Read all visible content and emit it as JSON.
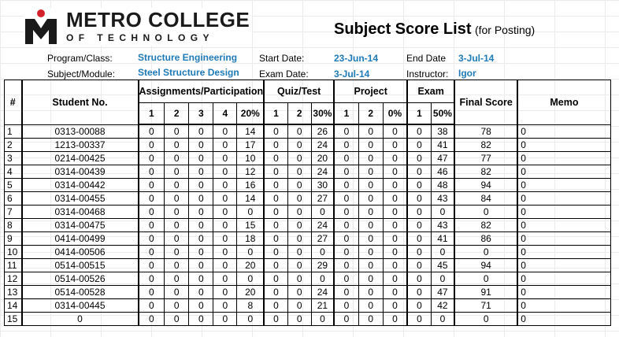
{
  "logo": {
    "name": "METRO COLLEGE",
    "sub": "OF TECHNOLOGY"
  },
  "title": {
    "main": "Subject Score List",
    "sub": "(for Posting)"
  },
  "info": {
    "program_label": "Program/Class:",
    "program_value": "Structure Engineering",
    "start_label": "Start Date:",
    "start_value": "23-Jun-14",
    "end_label": "End Date",
    "end_value": "3-Jul-14",
    "subject_label": "Subject/Module:",
    "subject_value": "Steel Structure Design",
    "exam_label": "Exam Date:",
    "exam_value": "3-Jul-14",
    "instructor_label": "Instructor:",
    "instructor_value": "Igor"
  },
  "headers": {
    "num": "#",
    "student": "Student No.",
    "assign": "Assignments/Participation",
    "quiz": "Quiz/Test",
    "project": "Project",
    "exam": "Exam",
    "final": "Final Score",
    "memo": "Memo",
    "a1": "1",
    "a2": "2",
    "a3": "3",
    "a4": "4",
    "a_pct": "20%",
    "q1": "1",
    "q2": "2",
    "q_pct": "30%",
    "p1": "1",
    "p2": "2",
    "p_pct": "0%",
    "e1": "1",
    "e_pct": "50%"
  },
  "rows": [
    {
      "n": "1",
      "id": "0313-00088",
      "a1": "0",
      "a2": "0",
      "a3": "0",
      "a4": "0",
      "ap": "14",
      "q1": "0",
      "q2": "0",
      "qp": "26",
      "p1": "0",
      "p2": "0",
      "pp": "0",
      "e1": "0",
      "ep": "38",
      "final": "78",
      "memo": "0"
    },
    {
      "n": "2",
      "id": "1213-00337",
      "a1": "0",
      "a2": "0",
      "a3": "0",
      "a4": "0",
      "ap": "17",
      "q1": "0",
      "q2": "0",
      "qp": "24",
      "p1": "0",
      "p2": "0",
      "pp": "0",
      "e1": "0",
      "ep": "41",
      "final": "82",
      "memo": "0"
    },
    {
      "n": "3",
      "id": "0214-00425",
      "a1": "0",
      "a2": "0",
      "a3": "0",
      "a4": "0",
      "ap": "10",
      "q1": "0",
      "q2": "0",
      "qp": "20",
      "p1": "0",
      "p2": "0",
      "pp": "0",
      "e1": "0",
      "ep": "47",
      "final": "77",
      "memo": "0"
    },
    {
      "n": "4",
      "id": "0314-00439",
      "a1": "0",
      "a2": "0",
      "a3": "0",
      "a4": "0",
      "ap": "12",
      "q1": "0",
      "q2": "0",
      "qp": "24",
      "p1": "0",
      "p2": "0",
      "pp": "0",
      "e1": "0",
      "ep": "46",
      "final": "82",
      "memo": "0"
    },
    {
      "n": "5",
      "id": "0314-00442",
      "a1": "0",
      "a2": "0",
      "a3": "0",
      "a4": "0",
      "ap": "16",
      "q1": "0",
      "q2": "0",
      "qp": "30",
      "p1": "0",
      "p2": "0",
      "pp": "0",
      "e1": "0",
      "ep": "48",
      "final": "94",
      "memo": "0"
    },
    {
      "n": "6",
      "id": "0314-00455",
      "a1": "0",
      "a2": "0",
      "a3": "0",
      "a4": "0",
      "ap": "14",
      "q1": "0",
      "q2": "0",
      "qp": "27",
      "p1": "0",
      "p2": "0",
      "pp": "0",
      "e1": "0",
      "ep": "43",
      "final": "84",
      "memo": "0"
    },
    {
      "n": "7",
      "id": "0314-00468",
      "a1": "0",
      "a2": "0",
      "a3": "0",
      "a4": "0",
      "ap": "0",
      "q1": "0",
      "q2": "0",
      "qp": "0",
      "p1": "0",
      "p2": "0",
      "pp": "0",
      "e1": "0",
      "ep": "0",
      "final": "0",
      "memo": "0"
    },
    {
      "n": "8",
      "id": "0314-00475",
      "a1": "0",
      "a2": "0",
      "a3": "0",
      "a4": "0",
      "ap": "15",
      "q1": "0",
      "q2": "0",
      "qp": "24",
      "p1": "0",
      "p2": "0",
      "pp": "0",
      "e1": "0",
      "ep": "43",
      "final": "82",
      "memo": "0"
    },
    {
      "n": "9",
      "id": "0414-00499",
      "a1": "0",
      "a2": "0",
      "a3": "0",
      "a4": "0",
      "ap": "18",
      "q1": "0",
      "q2": "0",
      "qp": "27",
      "p1": "0",
      "p2": "0",
      "pp": "0",
      "e1": "0",
      "ep": "41",
      "final": "86",
      "memo": "0"
    },
    {
      "n": "10",
      "id": "0414-00506",
      "a1": "0",
      "a2": "0",
      "a3": "0",
      "a4": "0",
      "ap": "0",
      "q1": "0",
      "q2": "0",
      "qp": "0",
      "p1": "0",
      "p2": "0",
      "pp": "0",
      "e1": "0",
      "ep": "0",
      "final": "0",
      "memo": "0"
    },
    {
      "n": "11",
      "id": "0514-00515",
      "a1": "0",
      "a2": "0",
      "a3": "0",
      "a4": "0",
      "ap": "20",
      "q1": "0",
      "q2": "0",
      "qp": "29",
      "p1": "0",
      "p2": "0",
      "pp": "0",
      "e1": "0",
      "ep": "45",
      "final": "94",
      "memo": "0"
    },
    {
      "n": "12",
      "id": "0514-00526",
      "a1": "0",
      "a2": "0",
      "a3": "0",
      "a4": "0",
      "ap": "0",
      "q1": "0",
      "q2": "0",
      "qp": "0",
      "p1": "0",
      "p2": "0",
      "pp": "0",
      "e1": "0",
      "ep": "0",
      "final": "0",
      "memo": "0"
    },
    {
      "n": "13",
      "id": "0514-00528",
      "a1": "0",
      "a2": "0",
      "a3": "0",
      "a4": "0",
      "ap": "20",
      "q1": "0",
      "q2": "0",
      "qp": "24",
      "p1": "0",
      "p2": "0",
      "pp": "0",
      "e1": "0",
      "ep": "47",
      "final": "91",
      "memo": "0"
    },
    {
      "n": "14",
      "id": "0314-00445",
      "a1": "0",
      "a2": "0",
      "a3": "0",
      "a4": "0",
      "ap": "8",
      "q1": "0",
      "q2": "0",
      "qp": "21",
      "p1": "0",
      "p2": "0",
      "pp": "0",
      "e1": "0",
      "ep": "42",
      "final": "71",
      "memo": "0"
    },
    {
      "n": "15",
      "id": "0",
      "a1": "0",
      "a2": "0",
      "a3": "0",
      "a4": "0",
      "ap": "0",
      "q1": "0",
      "q2": "0",
      "qp": "0",
      "p1": "0",
      "p2": "0",
      "pp": "0",
      "e1": "0",
      "ep": "0",
      "final": "0",
      "memo": "0"
    }
  ],
  "colors": {
    "accent_value": "#1f7ab8",
    "logo_red": "#d4202a"
  }
}
